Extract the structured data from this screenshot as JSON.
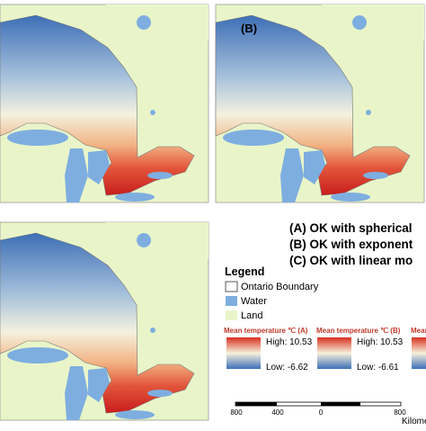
{
  "panel_label_b": "(B)",
  "methods": [
    "(A)  OK with spherical",
    "(B)  OK with exponent",
    "(C)  OK with linear mo"
  ],
  "legend": {
    "title": "Legend",
    "items": [
      "Ontario Boundary",
      "Water",
      "Land"
    ],
    "ramps": [
      {
        "title": "Mean temperature ℃ (A)",
        "high": "High: 10.53",
        "low": "Low: -6.62"
      },
      {
        "title": "Mean temperature ℃ (B)",
        "high": "High: 10.53",
        "low": "Low: -6.61"
      },
      {
        "title": "Mean te"
      }
    ]
  },
  "scale": {
    "ticks": [
      "800",
      "400",
      "0",
      "800"
    ],
    "unit": "Kilome"
  }
}
